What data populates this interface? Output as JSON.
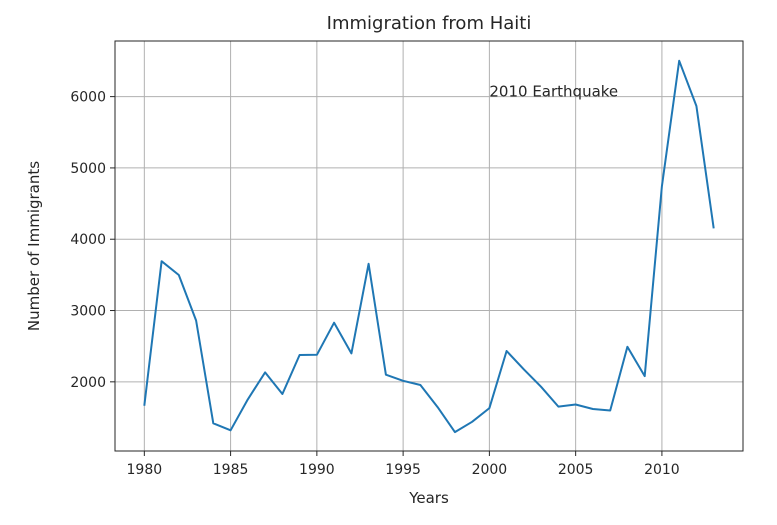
{
  "chart_data": {
    "type": "line",
    "title": "Immigration from Haiti",
    "xlabel": "Years",
    "ylabel": "Number of Immigrants",
    "xlim": [
      1978.3,
      2014.7
    ],
    "ylim": [
      1030,
      6780
    ],
    "grid": true,
    "xticks": [
      1980,
      1985,
      1990,
      1995,
      2000,
      2005,
      2010
    ],
    "yticks": [
      2000,
      3000,
      4000,
      5000,
      6000
    ],
    "series": [
      {
        "color": "#1f77b4",
        "x": [
          1980,
          1981,
          1982,
          1983,
          1984,
          1985,
          1986,
          1987,
          1988,
          1989,
          1990,
          1991,
          1992,
          1993,
          1994,
          1995,
          1996,
          1997,
          1998,
          1999,
          2000,
          2001,
          2002,
          2003,
          2004,
          2005,
          2006,
          2007,
          2008,
          2009,
          2010,
          2011,
          2012,
          2013
        ],
        "values": [
          1666,
          3692,
          3498,
          2860,
          1418,
          1321,
          1753,
          2132,
          1829,
          2377,
          2379,
          2829,
          2399,
          3655,
          2100,
          2014,
          1955,
          1645,
          1295,
          1439,
          1631,
          2433,
          2174,
          1930,
          1652,
          1682,
          1619,
          1598,
          2491,
          2080,
          4744,
          6503,
          5868,
          4152
        ]
      }
    ],
    "annotations": [
      {
        "text": "2010 Earthquake",
        "x": 2000,
        "y": 6000
      }
    ]
  }
}
